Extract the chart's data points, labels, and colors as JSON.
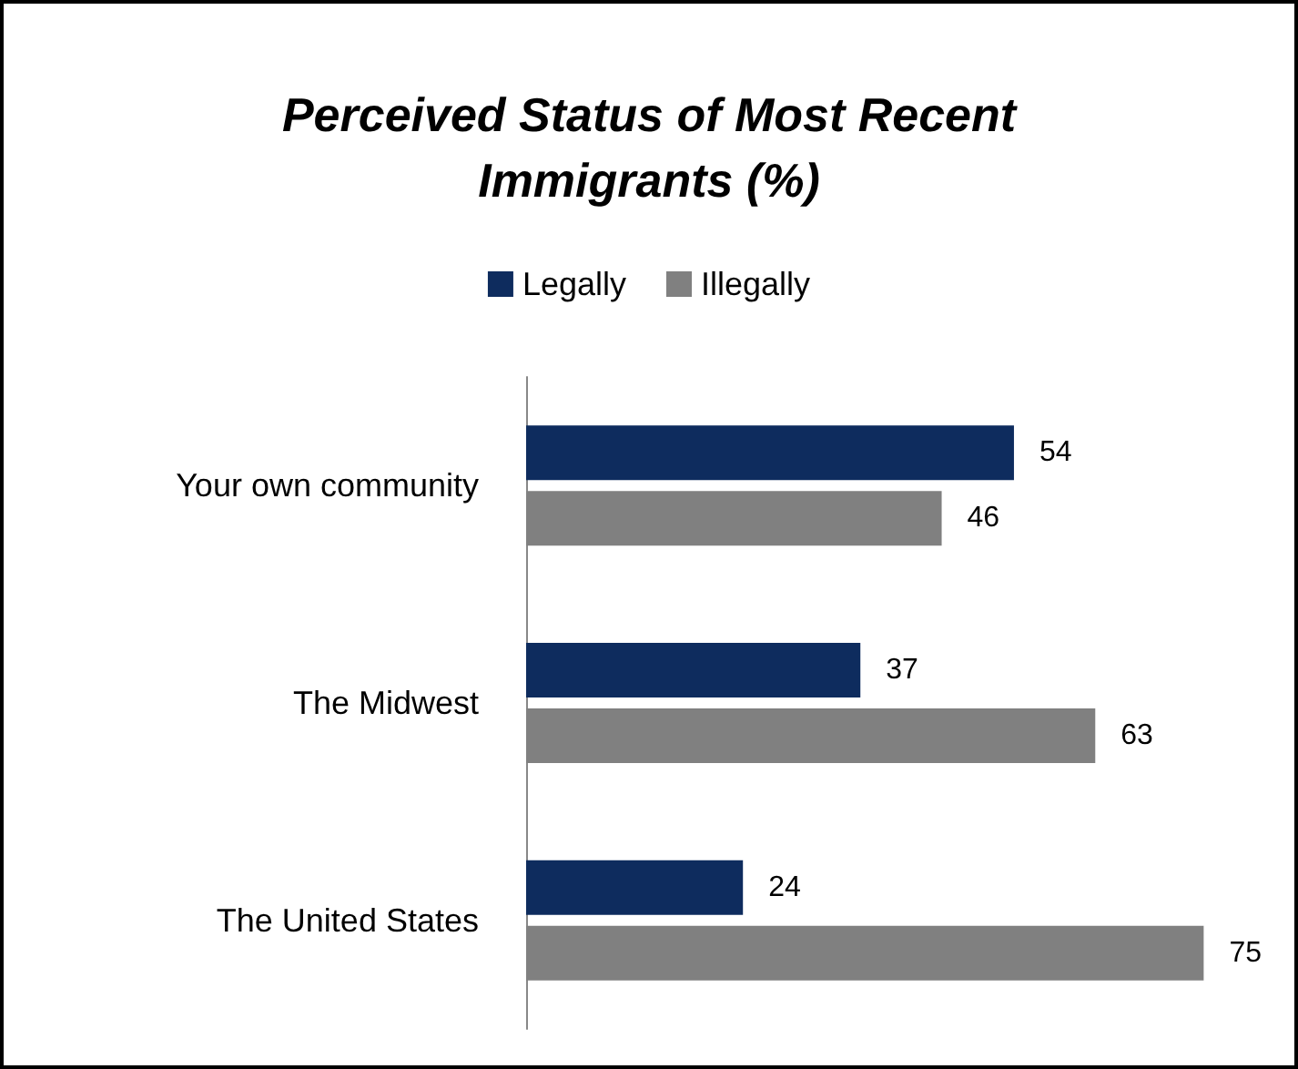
{
  "chart_data": {
    "type": "bar",
    "orientation": "horizontal",
    "title": "Perceived Status of Most Recent\nImmigrants (%)",
    "categories": [
      "Your own community",
      "The Midwest",
      "The United States"
    ],
    "series": [
      {
        "name": "Legally",
        "color": "#0e2c5e",
        "values": [
          54,
          37,
          24
        ]
      },
      {
        "name": "Illegally",
        "color": "#808080",
        "values": [
          46,
          63,
          75
        ]
      }
    ],
    "data_labels": true,
    "legend": "top"
  }
}
